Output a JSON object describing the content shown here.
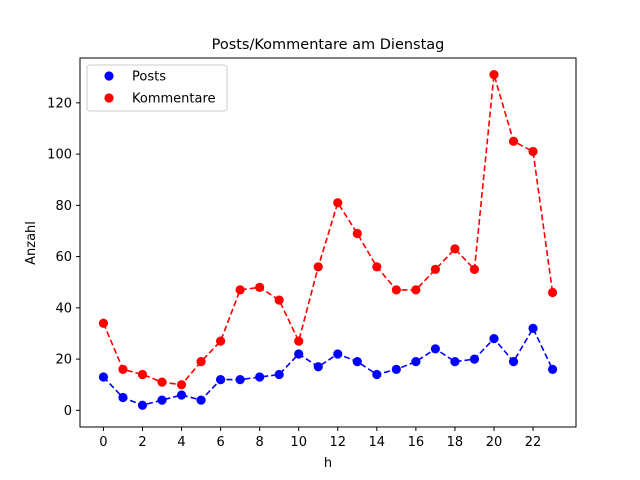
{
  "chart_data": {
    "type": "line",
    "title": "Posts/Kommentare am Dienstag",
    "xlabel": "h",
    "ylabel": "Anzahl",
    "x": [
      0,
      1,
      2,
      3,
      4,
      5,
      6,
      7,
      8,
      9,
      10,
      11,
      12,
      13,
      14,
      15,
      16,
      17,
      18,
      19,
      20,
      21,
      22,
      23
    ],
    "xticks": [
      0,
      2,
      4,
      6,
      8,
      10,
      12,
      14,
      16,
      18,
      20,
      22
    ],
    "yticks": [
      0,
      20,
      40,
      60,
      80,
      100,
      120
    ],
    "xlim": [
      -1.2,
      24.2
    ],
    "ylim": [
      -6.5,
      137.5
    ],
    "grid": false,
    "legend_position": "top-left",
    "series": [
      {
        "name": "Posts",
        "color": "#0000ff",
        "line_style": "dashed",
        "marker": "circle",
        "values": [
          13,
          5,
          2,
          4,
          6,
          4,
          12,
          12,
          13,
          14,
          22,
          17,
          22,
          19,
          14,
          16,
          19,
          24,
          19,
          20,
          28,
          19,
          32,
          16
        ]
      },
      {
        "name": "Kommentare",
        "color": "#ff0000",
        "line_style": "dashed",
        "marker": "circle",
        "values": [
          34,
          16,
          14,
          11,
          10,
          19,
          27,
          47,
          48,
          43,
          27,
          56,
          81,
          69,
          56,
          47,
          47,
          55,
          63,
          55,
          131,
          105,
          101,
          46
        ]
      }
    ]
  }
}
